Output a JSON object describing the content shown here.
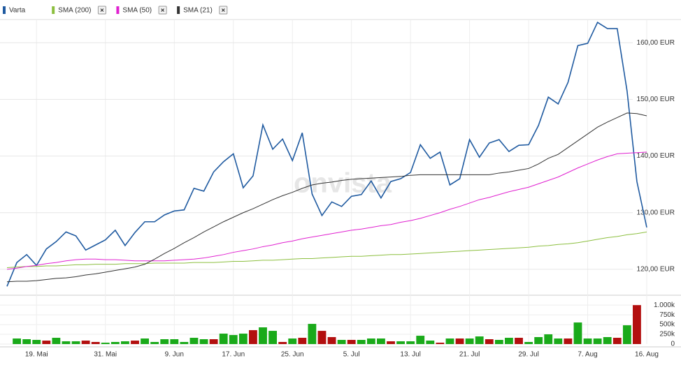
{
  "chart_data": [
    {
      "type": "line",
      "watermark": "onvista",
      "categories": [
        null,
        null,
        null,
        "19. Mai",
        null,
        null,
        null,
        null,
        null,
        null,
        "31. Mai",
        null,
        null,
        null,
        null,
        null,
        null,
        "9. Jun",
        null,
        null,
        null,
        null,
        null,
        "17. Jun",
        null,
        null,
        null,
        null,
        null,
        "25. Jun",
        null,
        null,
        null,
        null,
        null,
        "5. Jul",
        null,
        null,
        null,
        null,
        null,
        "13. Jul",
        null,
        null,
        null,
        null,
        null,
        "21. Jul",
        null,
        null,
        null,
        null,
        null,
        "29. Jul",
        null,
        null,
        null,
        null,
        null,
        "7. Aug",
        null,
        null,
        null,
        null,
        null,
        "16. Aug"
      ],
      "series": [
        {
          "name": "Varta",
          "color": "#1f5aa0",
          "width": 1.6,
          "values": [
            117.0,
            121.2,
            122.6,
            120.7,
            123.6,
            124.9,
            126.6,
            125.9,
            123.4,
            124.3,
            125.2,
            126.9,
            124.2,
            126.5,
            128.4,
            128.4,
            129.6,
            130.3,
            130.5,
            134.3,
            133.8,
            137.2,
            139.0,
            140.4,
            134.4,
            136.5,
            145.5,
            141.2,
            143.0,
            139.2,
            144.1,
            133.3,
            129.5,
            131.9,
            131.1,
            132.9,
            133.2,
            135.6,
            132.6,
            135.5,
            136.0,
            137.1,
            142.0,
            139.6,
            140.7,
            134.9,
            136.0,
            142.9,
            139.8,
            142.3,
            142.9,
            140.8,
            141.9,
            142.0,
            145.4,
            150.4,
            149.2,
            153.0,
            159.5,
            159.9,
            163.6,
            162.5,
            162.5,
            151.5,
            135.5,
            127.4
          ]
        },
        {
          "name": "SMA (200)",
          "color": "#8cbf3f",
          "width": 1,
          "values": [
            120.3,
            120.4,
            120.5,
            120.5,
            120.6,
            120.6,
            120.7,
            120.8,
            120.8,
            120.9,
            120.9,
            120.9,
            121.0,
            121.0,
            121.0,
            121.1,
            121.1,
            121.1,
            121.1,
            121.2,
            121.2,
            121.2,
            121.3,
            121.4,
            121.4,
            121.5,
            121.6,
            121.6,
            121.7,
            121.8,
            121.9,
            121.9,
            122.0,
            122.1,
            122.2,
            122.3,
            122.3,
            122.4,
            122.5,
            122.6,
            122.6,
            122.7,
            122.8,
            122.9,
            123.0,
            123.1,
            123.2,
            123.3,
            123.4,
            123.5,
            123.6,
            123.7,
            123.8,
            123.9,
            124.1,
            124.2,
            124.4,
            124.5,
            124.7,
            125.0,
            125.3,
            125.6,
            125.8,
            126.1,
            126.3,
            126.6
          ]
        },
        {
          "name": "SMA (50)",
          "color": "#e020d0",
          "width": 1,
          "values": [
            120.0,
            120.2,
            120.5,
            120.7,
            121.0,
            121.2,
            121.5,
            121.7,
            121.8,
            121.8,
            121.7,
            121.7,
            121.6,
            121.5,
            121.5,
            121.5,
            121.5,
            121.6,
            121.7,
            121.8,
            122.0,
            122.3,
            122.6,
            123.0,
            123.3,
            123.6,
            124.0,
            124.3,
            124.7,
            125.0,
            125.4,
            125.7,
            126.0,
            126.3,
            126.6,
            126.9,
            127.1,
            127.4,
            127.7,
            127.9,
            128.3,
            128.6,
            129.0,
            129.5,
            130.0,
            130.6,
            131.1,
            131.7,
            132.3,
            132.7,
            133.2,
            133.7,
            134.1,
            134.5,
            135.1,
            135.7,
            136.3,
            137.1,
            137.9,
            138.6,
            139.3,
            139.9,
            140.4,
            140.5,
            140.6,
            140.7
          ]
        },
        {
          "name": "SMA (21)",
          "color": "#333333",
          "width": 1,
          "values": [
            117.8,
            117.9,
            117.9,
            118.0,
            118.2,
            118.4,
            118.5,
            118.7,
            119.0,
            119.2,
            119.5,
            119.8,
            120.1,
            120.4,
            120.9,
            121.8,
            122.8,
            123.7,
            124.7,
            125.6,
            126.6,
            127.5,
            128.4,
            129.2,
            130.0,
            130.7,
            131.5,
            132.3,
            133.0,
            133.6,
            134.3,
            134.9,
            135.2,
            135.4,
            135.7,
            135.9,
            136.0,
            136.1,
            136.2,
            136.3,
            136.4,
            136.6,
            136.7,
            136.7,
            136.7,
            136.7,
            136.7,
            136.7,
            136.7,
            136.7,
            137.0,
            137.2,
            137.5,
            137.8,
            138.6,
            139.6,
            140.3,
            141.5,
            142.7,
            143.9,
            145.1,
            146.0,
            146.8,
            147.6,
            147.5,
            147.1
          ]
        }
      ],
      "ylim": [
        115.8,
        164.1
      ],
      "yticks": [
        {
          "value": 120,
          "label": "120,00 EUR"
        },
        {
          "value": 130,
          "label": "130,00 EUR"
        },
        {
          "value": 140,
          "label": "140,00 EUR"
        },
        {
          "value": 150,
          "label": "150,00 EUR"
        },
        {
          "value": 160,
          "label": "160,00 EUR"
        }
      ],
      "grid": true
    },
    {
      "type": "bar",
      "values": [
        null,
        143000,
        125000,
        107000,
        89000,
        161000,
        71000,
        71000,
        89000,
        54000,
        36000,
        54000,
        71000,
        89000,
        143000,
        54000,
        125000,
        125000,
        54000,
        161000,
        125000,
        125000,
        268000,
        232000,
        268000,
        357000,
        429000,
        339000,
        54000,
        143000,
        161000,
        518000,
        339000,
        179000,
        107000,
        107000,
        107000,
        143000,
        143000,
        71000,
        71000,
        71000,
        214000,
        89000,
        36000,
        143000,
        143000,
        143000,
        196000,
        125000,
        107000,
        161000,
        161000,
        54000,
        179000,
        250000,
        143000,
        143000,
        554000,
        143000,
        143000,
        179000,
        161000,
        482000,
        1000000,
        null
      ],
      "colors": [
        "#1aaa1a",
        "#1aaa1a",
        "#1aaa1a",
        "#1aaa1a",
        "#b30f0f",
        "#1aaa1a",
        "#1aaa1a",
        "#1aaa1a",
        "#b30f0f",
        "#b30f0f",
        "#1aaa1a",
        "#1aaa1a",
        "#1aaa1a",
        "#b30f0f",
        "#1aaa1a",
        "#1aaa1a",
        "#1aaa1a",
        "#1aaa1a",
        "#1aaa1a",
        "#1aaa1a",
        "#1aaa1a",
        "#b30f0f",
        "#1aaa1a",
        "#1aaa1a",
        "#1aaa1a",
        "#b30f0f",
        "#1aaa1a",
        "#1aaa1a",
        "#b30f0f",
        "#1aaa1a",
        "#b30f0f",
        "#1aaa1a",
        "#b30f0f",
        "#b30f0f",
        "#1aaa1a",
        "#b30f0f",
        "#1aaa1a",
        "#1aaa1a",
        "#1aaa1a",
        "#b30f0f",
        "#1aaa1a",
        "#1aaa1a",
        "#1aaa1a",
        "#1aaa1a",
        "#b30f0f",
        "#1aaa1a",
        "#b30f0f",
        "#1aaa1a",
        "#1aaa1a",
        "#b30f0f",
        "#1aaa1a",
        "#1aaa1a",
        "#b30f0f",
        "#1aaa1a",
        "#1aaa1a",
        "#1aaa1a",
        "#1aaa1a",
        "#b30f0f",
        "#1aaa1a",
        "#1aaa1a",
        "#1aaa1a",
        "#1aaa1a",
        "#b30f0f",
        "#1aaa1a",
        "#b30f0f",
        "#1aaa1a"
      ],
      "ylim": [
        0,
        1200000
      ],
      "yticks": [
        0,
        {
          "value": 250000,
          "label": "250k"
        },
        {
          "value": 500000,
          "label": "500k"
        },
        {
          "value": 750000,
          "label": "750k"
        },
        {
          "value": 1000000,
          "label": "1.000k"
        }
      ]
    }
  ]
}
